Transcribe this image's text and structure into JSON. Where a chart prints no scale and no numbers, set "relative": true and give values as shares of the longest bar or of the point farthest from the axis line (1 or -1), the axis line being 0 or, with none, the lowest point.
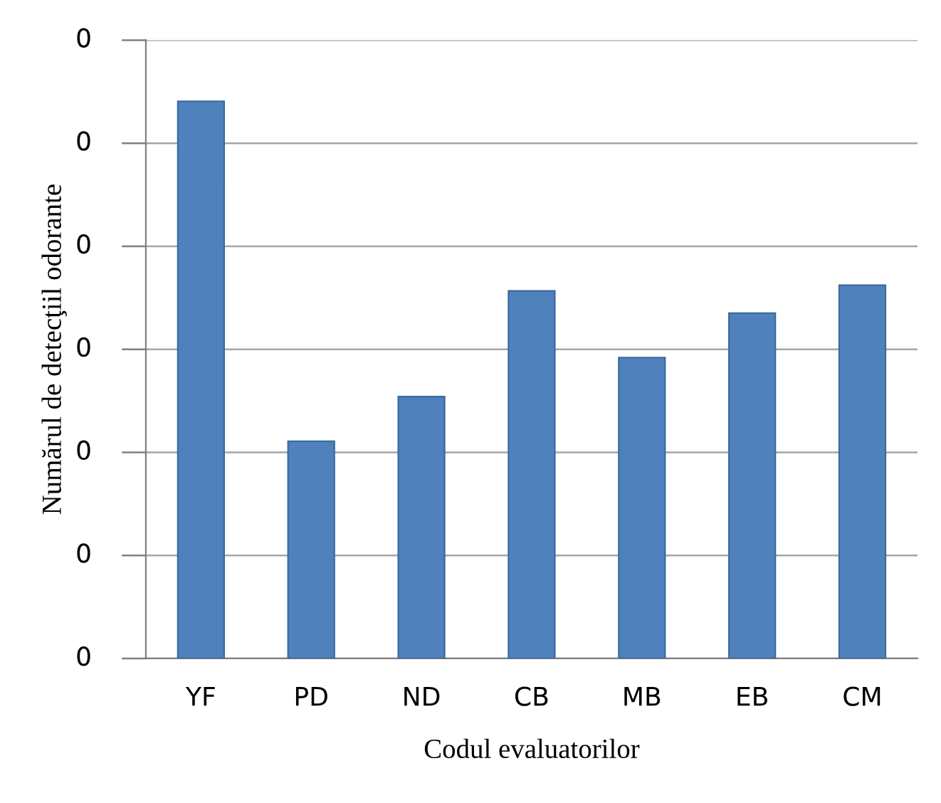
{
  "chart_data": {
    "type": "bar",
    "xlabel": "Codul evaluatorilor",
    "ylabel": "Numărul de detecţiil odorante",
    "categories": [
      "YF",
      "PD",
      "ND",
      "CB",
      "MB",
      "EB",
      "CM"
    ],
    "values": [
      1,
      0.39,
      0.47,
      0.66,
      0.54,
      0.62,
      0.67
    ],
    "relative": true,
    "color": "#4f81bd",
    "annotations": [
      "0",
      "0",
      "0",
      "0",
      "0",
      "0",
      "0"
    ],
    "grid": "y"
  }
}
